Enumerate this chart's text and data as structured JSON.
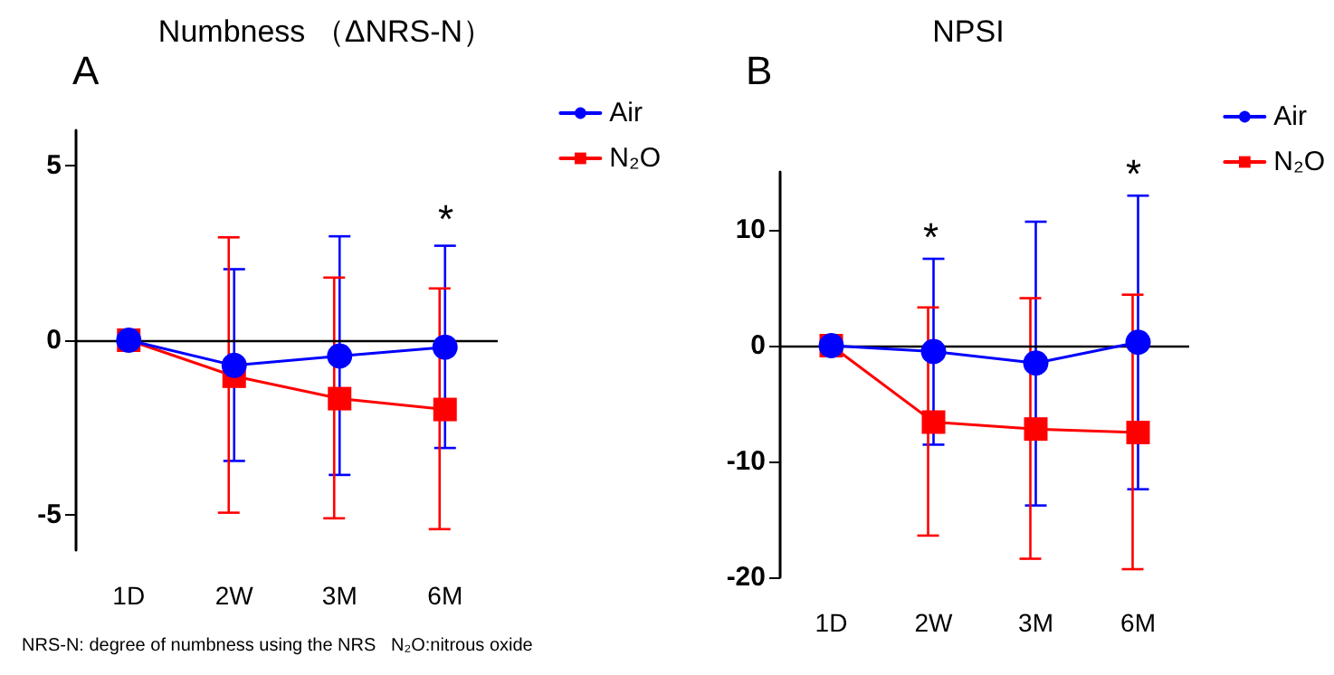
{
  "chart_data": [
    {
      "type": "line",
      "title": "Numbness （ΔNRS-N）",
      "categories": [
        "1D",
        "2W",
        "3M",
        "6M"
      ],
      "series": [
        {
          "name": "Air",
          "color": "#0000ff",
          "marker": "circle",
          "values": [
            0,
            -0.72,
            -0.45,
            -0.2
          ],
          "errors": [
            null,
            [
              -3.45,
              2.03
            ],
            [
              -3.85,
              2.97
            ],
            [
              -3.08,
              2.7
            ]
          ]
        },
        {
          "name": "N₂O",
          "color": "#ff0000",
          "marker": "square",
          "values": [
            0,
            -1.03,
            -1.67,
            -1.98
          ],
          "errors": [
            null,
            [
              -4.93,
              2.94
            ],
            [
              -5.09,
              1.79
            ],
            [
              -5.4,
              1.48
            ]
          ]
        }
      ],
      "ylim": [
        -6,
        6
      ],
      "yticks": [
        -5,
        0,
        5
      ],
      "grid": false,
      "ref_lines": [
        {
          "axis": "y",
          "value": 0,
          "color": "#000000"
        }
      ],
      "legend": "top right",
      "line_style": "solid",
      "annotations": [
        "A",
        "*",
        "NRS-N: degree of numbness using the NRS   N₂O:nitrous oxide"
      ]
    },
    {
      "type": "line",
      "title": "NPSI",
      "categories": [
        "1D",
        "2W",
        "3M",
        "6M"
      ],
      "series": [
        {
          "name": "Air",
          "color": "#0000ff",
          "marker": "circle",
          "values": [
            0,
            -0.5,
            -1.5,
            0.3
          ],
          "errors": [
            null,
            [
              -8.55,
              7.5
            ],
            [
              -13.8,
              10.7
            ],
            [
              -12.4,
              12.95
            ]
          ]
        },
        {
          "name": "N₂O",
          "color": "#ff0000",
          "marker": "square",
          "values": [
            0,
            -6.6,
            -7.2,
            -7.5
          ],
          "errors": [
            null,
            [
              -16.4,
              3.3
            ],
            [
              -18.4,
              4.1
            ],
            [
              -19.3,
              4.4
            ]
          ]
        }
      ],
      "ylim": [
        -20,
        15
      ],
      "yticks": [
        -20,
        -10,
        0,
        10
      ],
      "grid": false,
      "ref_lines": [
        {
          "axis": "y",
          "value": 0,
          "color": "#000000"
        }
      ],
      "legend": "top right",
      "line_style": "solid",
      "annotations": [
        "B",
        "*",
        "*"
      ]
    }
  ]
}
